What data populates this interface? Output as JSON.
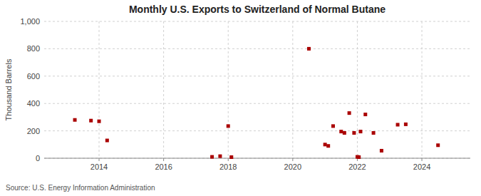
{
  "chart_data": {
    "type": "scatter",
    "title": "Monthly U.S. Exports to Switzerland of Normal Butane",
    "ylabel": "Thousand Barrels",
    "source": "Source: U.S. Energy Information Administration",
    "color": "#aa0000",
    "marker": "square",
    "grid": true,
    "xlim": [
      2012.3,
      2025.5
    ],
    "xticks": [
      2014,
      2016,
      2018,
      2020,
      2022,
      2024
    ],
    "ylim": [
      0,
      1000
    ],
    "yticks": [
      0,
      200,
      400,
      600,
      800,
      {
        "value": 1000,
        "label": "1,000"
      }
    ],
    "x": [
      2013.25,
      2013.75,
      2014.0,
      2014.25,
      2017.5,
      2017.75,
      2018.0,
      2018.1,
      2020.5,
      2021.0,
      2021.1,
      2021.25,
      2021.5,
      2021.6,
      2021.75,
      2021.9,
      2022.0,
      2022.05,
      2022.1,
      2022.25,
      2022.5,
      2022.75,
      2023.25,
      2023.5,
      2024.5
    ],
    "values": [
      280,
      275,
      270,
      130,
      10,
      15,
      235,
      8,
      800,
      100,
      90,
      235,
      195,
      185,
      330,
      185,
      10,
      8,
      195,
      320,
      185,
      55,
      245,
      248,
      95
    ]
  }
}
